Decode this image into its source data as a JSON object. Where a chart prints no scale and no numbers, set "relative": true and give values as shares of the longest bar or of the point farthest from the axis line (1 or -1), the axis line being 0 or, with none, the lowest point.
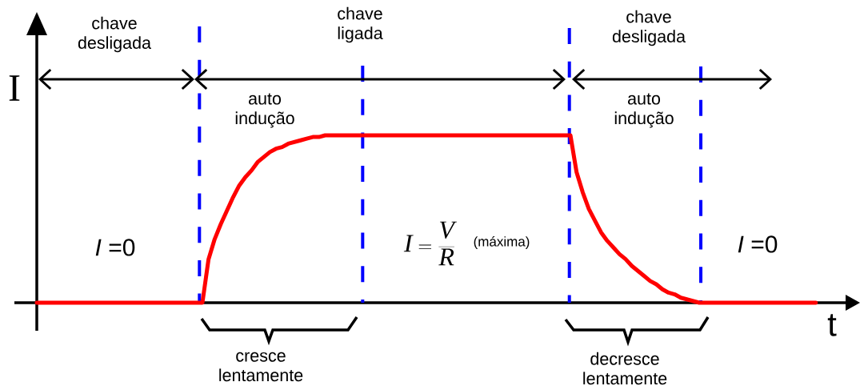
{
  "chart_data": {
    "type": "line",
    "xlabel": "t",
    "ylabel": "I",
    "relative": true,
    "color": "#ff0000",
    "marker": "none",
    "categories": [
      null,
      null,
      null,
      null,
      null,
      null,
      null,
      null,
      null,
      null,
      null,
      null,
      null,
      null,
      null,
      null,
      null,
      null,
      null,
      null,
      null,
      null,
      null,
      null,
      null,
      null,
      null,
      null,
      null,
      null,
      null,
      null,
      null,
      null,
      null,
      null,
      null,
      null,
      null,
      null,
      null,
      null,
      null,
      null,
      null,
      null,
      null,
      null,
      null,
      null,
      null,
      null,
      null,
      null,
      null,
      null,
      null,
      null,
      null,
      null,
      null,
      null,
      null,
      null,
      null,
      null,
      null,
      null,
      null,
      null,
      null,
      null,
      null,
      null,
      null,
      null,
      null,
      null,
      null,
      null,
      null,
      null,
      null,
      null,
      null,
      null,
      null,
      null,
      null,
      null,
      null,
      null,
      null,
      null,
      null,
      null,
      null,
      null,
      null,
      null,
      null,
      null,
      null,
      null,
      null,
      null,
      null,
      null,
      null,
      null,
      null,
      null,
      null,
      null,
      null,
      null,
      null,
      null,
      null,
      null,
      null,
      null,
      null,
      null,
      null,
      null,
      null,
      null
    ],
    "values": [
      0,
      0,
      0,
      0,
      0,
      0,
      0,
      0,
      0,
      0,
      0,
      0,
      0,
      0,
      0,
      0,
      0,
      0,
      0,
      0,
      0,
      0,
      0,
      0,
      0,
      0,
      0,
      0,
      0.26,
      0.38,
      0.47,
      0.55,
      0.63,
      0.7,
      0.75,
      0.79,
      0.84,
      0.87,
      0.9,
      0.92,
      0.93,
      0.95,
      0.96,
      0.97,
      0.98,
      0.99,
      0.99,
      1,
      1,
      1,
      1,
      1,
      1,
      1,
      1,
      1,
      1,
      1,
      1,
      1,
      1,
      1,
      1,
      1,
      1,
      1,
      1,
      1,
      1,
      1,
      1,
      1,
      1,
      1,
      1,
      1,
      1,
      1,
      1,
      1,
      1,
      1,
      1,
      1,
      1,
      1,
      1,
      1,
      0.78,
      0.66,
      0.56,
      0.49,
      0.42,
      0.37,
      0.33,
      0.29,
      0.26,
      0.22,
      0.19,
      0.16,
      0.13,
      0.11,
      0.08,
      0.06,
      0.05,
      0.03,
      0.02,
      0.01,
      0,
      0,
      0,
      0,
      0,
      0,
      0,
      0,
      0,
      0,
      0,
      0,
      0,
      0,
      0,
      0,
      0,
      0,
      0,
      0
    ],
    "annotations": [
      "chave desligada",
      "chave ligada",
      "chave desligada",
      "auto indução",
      "auto indução",
      "*I* =0",
      "I=\\frac{V}{R}",
      "(máxima)",
      "*I* =0",
      "cresce lentamente",
      "decresce lentamente"
    ]
  }
}
